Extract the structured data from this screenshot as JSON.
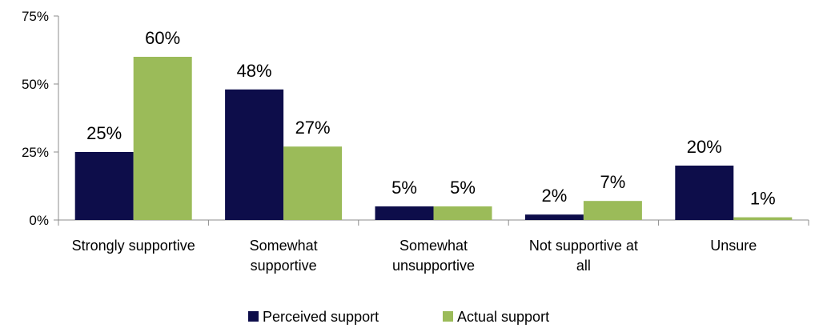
{
  "chart_data": {
    "type": "bar",
    "title": "",
    "xlabel": "",
    "ylabel": "",
    "categories": [
      [
        "Strongly supportive"
      ],
      [
        "Somewhat",
        "supportive"
      ],
      [
        "Somewhat",
        "unsupportive"
      ],
      [
        "Not supportive at",
        "all"
      ],
      [
        "Unsure"
      ]
    ],
    "series": [
      {
        "name": "Perceived support",
        "color": "#0d0d4a",
        "values": [
          25,
          48,
          5,
          2,
          20
        ],
        "labels": [
          "25%",
          "48%",
          "5%",
          "2%",
          "20%"
        ]
      },
      {
        "name": "Actual support",
        "color": "#9bbb59",
        "values": [
          60,
          27,
          5,
          7,
          1
        ],
        "labels": [
          "60%",
          "27%",
          "5%",
          "7%",
          "1%"
        ]
      }
    ],
    "ylim": [
      0,
      75
    ],
    "yticks": [
      0,
      25,
      50,
      75
    ],
    "ytick_labels": [
      "0%",
      "25%",
      "50%",
      "75%"
    ],
    "grid": false,
    "legend": "bottom"
  }
}
